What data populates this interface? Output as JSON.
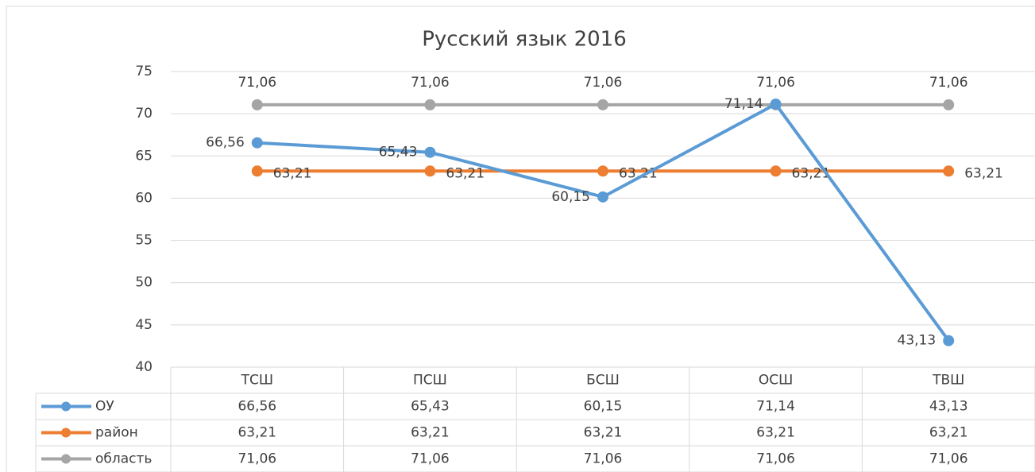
{
  "chart_data": {
    "type": "line",
    "title": "Русский язык 2016",
    "categories": [
      "ТСШ",
      "ПСШ",
      "БСШ",
      "ОСШ",
      "ТВШ"
    ],
    "series": [
      {
        "name": "ОУ",
        "color": "#5b9bd5",
        "values": [
          66.56,
          65.43,
          60.15,
          71.14,
          43.13
        ],
        "value_labels": [
          "66,56",
          "65,43",
          "60,15",
          "71,14",
          "43,13"
        ],
        "label_position": "left"
      },
      {
        "name": "район",
        "color": "#ed7d31",
        "values": [
          63.21,
          63.21,
          63.21,
          63.21,
          63.21
        ],
        "value_labels": [
          "63,21",
          "63,21",
          "63,21",
          "63,21",
          "63,21"
        ],
        "label_position": "right"
      },
      {
        "name": "область",
        "color": "#a5a5a5",
        "values": [
          71.06,
          71.06,
          71.06,
          71.06,
          71.06
        ],
        "value_labels": [
          "71,06",
          "71,06",
          "71,06",
          "71,06",
          "71,06"
        ],
        "label_position": "above"
      }
    ],
    "ylim": [
      40,
      75
    ],
    "yticks": [
      40,
      45,
      50,
      55,
      60,
      65,
      70,
      75
    ],
    "grid": true,
    "data_table": true
  }
}
